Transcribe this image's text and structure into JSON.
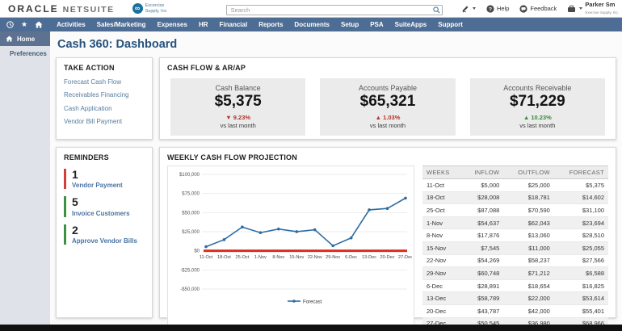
{
  "header": {
    "brand_oracle": "ORACLE",
    "brand_netsuite": "NETSUITE",
    "company_name": "Excercise Supply, Inc",
    "search_placeholder": "Search",
    "help_label": "Help",
    "feedback_label": "Feedback",
    "user_name": "Parker Sm",
    "user_subtitle": "Exercise Supply, Inc."
  },
  "nav": {
    "items": [
      "Activities",
      "Sales/Marketing",
      "Expenses",
      "HR",
      "Financial",
      "Reports",
      "Documents",
      "Setup",
      "PSA",
      "SuiteApps",
      "Support"
    ]
  },
  "sidebar": {
    "items": [
      {
        "label": "Home"
      },
      {
        "label": "Preferences"
      }
    ]
  },
  "page": {
    "title": "Cash 360: Dashboard"
  },
  "take_action": {
    "heading": "TAKE ACTION",
    "links": [
      "Forecast Cash Flow",
      "Receivables Financing",
      "Cash Application",
      "Vendor Bill Payment"
    ]
  },
  "cash_flow_panel": {
    "heading": "CASH FLOW & AR/AP",
    "kpis": [
      {
        "title": "Cash Balance",
        "value": "$5,375",
        "delta": "9.23%",
        "direction": "down",
        "color": "#b5352c",
        "sub": "vs last month"
      },
      {
        "title": "Accounts Payable",
        "value": "$65,321",
        "delta": "1.03%",
        "direction": "up",
        "color": "#b5352c",
        "sub": "vs last month"
      },
      {
        "title": "Accounts Receivable",
        "value": "$71,229",
        "delta": "10.23%",
        "direction": "up",
        "color": "#3a8a3d",
        "sub": "vs last month"
      }
    ]
  },
  "reminders": {
    "heading": "REMINDERS",
    "items": [
      {
        "count": "1",
        "label": "Vendor Payment",
        "bar_color": "#d43f3a"
      },
      {
        "count": "5",
        "label": "Invoice Customers",
        "bar_color": "#3f9142"
      },
      {
        "count": "2",
        "label": "Approve Vendor Bills",
        "bar_color": "#3f9142"
      }
    ]
  },
  "projection": {
    "heading": "WEEKLY CASH FLOW PROJECTION"
  },
  "chart_data": {
    "type": "line",
    "title": "WEEKLY CASH FLOW PROJECTION",
    "x": [
      "11-Oct",
      "18-Oct",
      "25-Oct",
      "1-Nov",
      "8-Nov",
      "15-Nov",
      "22-Nov",
      "29-Nov",
      "6-Dec",
      "13-Dec",
      "20-Dec",
      "27-Dec"
    ],
    "series": [
      {
        "name": "Forecast",
        "color": "#2e6da4",
        "values": [
          5375,
          14602,
          31100,
          23694,
          28510,
          25055,
          27566,
          6588,
          16825,
          53614,
          55401,
          68966
        ]
      }
    ],
    "zero_line": {
      "value": 0,
      "color": "#e02b1f"
    },
    "ylim": [
      -50000,
      100000
    ],
    "ytick_step": 25000,
    "ytick_labels": [
      "$100,000",
      "$75,000",
      "$50,000",
      "$25,000",
      "$0",
      "-$25,000",
      "-$50,000"
    ],
    "xlabel": "",
    "ylabel": "",
    "grid": true,
    "legend": [
      "Forecast"
    ],
    "legend_position": "bottom"
  },
  "table": {
    "columns": [
      "WEEKS",
      "INFLOW",
      "OUTFLOW",
      "FORECAST"
    ],
    "rows": [
      [
        "11-Oct",
        "$5,000",
        "$25,000",
        "$5,375"
      ],
      [
        "18-Oct",
        "$28,008",
        "$18,781",
        "$14,602"
      ],
      [
        "25-Oct",
        "$87,088",
        "$70,590",
        "$31,100"
      ],
      [
        "1-Nov",
        "$54,637",
        "$62,043",
        "$23,694"
      ],
      [
        "8-Nov",
        "$17,876",
        "$13,060",
        "$28,510"
      ],
      [
        "15-Nov",
        "$7,545",
        "$11,000",
        "$25,055"
      ],
      [
        "22-Nov",
        "$54,269",
        "$58,237",
        "$27,566"
      ],
      [
        "29-Nov",
        "$60,748",
        "$71,212",
        "$6,588"
      ],
      [
        "6-Dec",
        "$28,891",
        "$18,654",
        "$16,825"
      ],
      [
        "13-Dec",
        "$58,789",
        "$22,000",
        "$53,614"
      ],
      [
        "20-Dec",
        "$43,787",
        "$42,000",
        "$55,401"
      ],
      [
        "27-Dec",
        "$50,545",
        "$36,980",
        "$68,966"
      ]
    ]
  }
}
